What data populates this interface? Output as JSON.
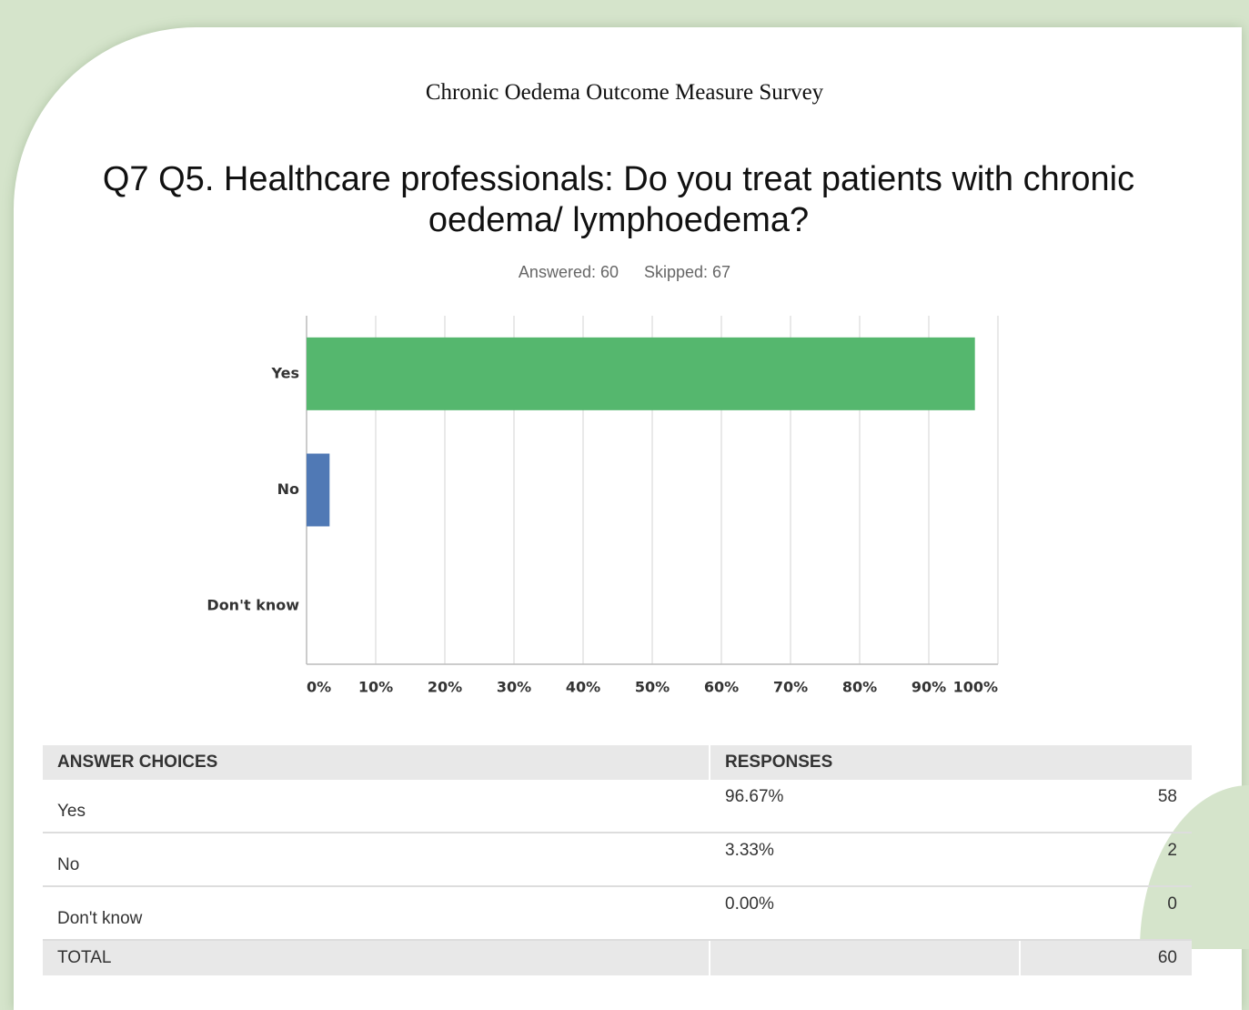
{
  "header": {
    "title": "Chronic Oedema Outcome Measure Survey",
    "question": "Q7 Q5. Healthcare professionals: Do you treat patients with chronic oedema/ lymphoedema?",
    "answered": "Answered: 60",
    "skipped": "Skipped: 67"
  },
  "chart_data": {
    "type": "hbar",
    "categories": [
      "Yes",
      "No",
      "Don't know"
    ],
    "values": [
      96.67,
      3.33,
      0
    ],
    "colors": [
      "#55b76e",
      "#5079b5",
      "#e59638"
    ],
    "xlim": [
      0,
      100
    ],
    "xticks": [
      {
        "value": 0,
        "label": "0%"
      },
      {
        "value": 10,
        "label": "10%"
      },
      {
        "value": 20,
        "label": "20%"
      },
      {
        "value": 30,
        "label": "30%"
      },
      {
        "value": 40,
        "label": "40%"
      },
      {
        "value": 50,
        "label": "50%"
      },
      {
        "value": 60,
        "label": "60%"
      },
      {
        "value": 70,
        "label": "70%"
      },
      {
        "value": 80,
        "label": "80%"
      },
      {
        "value": 90,
        "label": "90%"
      },
      {
        "value": 100,
        "label": "100%"
      }
    ],
    "grid": true
  },
  "table": {
    "header": [
      "ANSWER CHOICES",
      "RESPONSES"
    ],
    "rows": [
      [
        "Yes",
        "96.67%",
        "58"
      ],
      [
        "No",
        "3.33%",
        "2"
      ],
      [
        "Don't know",
        "0.00%",
        "0"
      ]
    ],
    "total": {
      "label": "TOTAL",
      "count": "60"
    }
  }
}
